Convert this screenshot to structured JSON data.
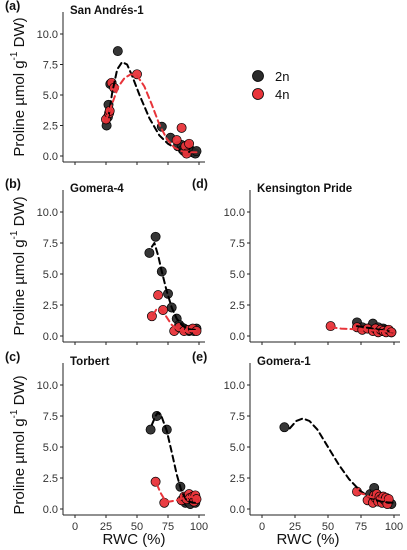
{
  "colors": {
    "2n": "#2b2b2b",
    "4n": "#e8343a"
  },
  "legend": [
    {
      "name": "2n",
      "color": "#2b2b2b"
    },
    {
      "name": "4n",
      "color": "#e8343a"
    }
  ],
  "axes": {
    "ylabel_main": "Proline µmol g",
    "ylabel_exp": "-1",
    "ylabel_tail": " DW)",
    "xlabel": "RWC (%)",
    "xticks": [
      0,
      25,
      50,
      75,
      100
    ],
    "yticks": [
      "0.0",
      "2.5",
      "5.0",
      "7.5",
      "10.0"
    ]
  },
  "chart_data": [
    {
      "type": "scatter",
      "panel": "(a)",
      "title": "San Andrés-1",
      "xlim": [
        0,
        100
      ],
      "ylim": [
        0,
        10
      ],
      "series": [
        {
          "name": "2n",
          "points": [
            [
              25.5,
              2.5
            ],
            [
              26.5,
              3.2
            ],
            [
              27,
              4.2
            ],
            [
              28.5,
              5.9
            ],
            [
              34.5,
              8.6
            ],
            [
              70,
              2.4
            ],
            [
              77,
              1.5
            ],
            [
              83,
              0.8
            ],
            [
              86,
              0.9
            ],
            [
              87,
              0.5
            ],
            [
              88,
              0.4
            ],
            [
              90,
              0.4
            ],
            [
              91,
              0.9
            ],
            [
              93,
              0.5
            ],
            [
              95,
              0.3
            ],
            [
              97,
              0.2
            ],
            [
              98,
              0.4
            ]
          ],
          "fit": [
            [
              27,
              3.2
            ],
            [
              30,
              5.2
            ],
            [
              34,
              7.1
            ],
            [
              38,
              7.7
            ],
            [
              42,
              7.5
            ],
            [
              46,
              6.6
            ],
            [
              52,
              5.0
            ],
            [
              60,
              3.1
            ],
            [
              68,
              1.7
            ],
            [
              75,
              1.0
            ],
            [
              82,
              0.6
            ],
            [
              88,
              0.4
            ],
            [
              95,
              0.3
            ],
            [
              98,
              0.3
            ]
          ]
        },
        {
          "name": "4n",
          "points": [
            [
              25,
              3.0
            ],
            [
              27.5,
              3.5
            ],
            [
              28,
              3.7
            ],
            [
              29.5,
              6.0
            ],
            [
              31.5,
              5.6
            ],
            [
              50,
              6.7
            ],
            [
              82,
              1.3
            ],
            [
              86,
              2.3
            ],
            [
              89,
              0.8
            ],
            [
              90,
              0.2
            ],
            [
              92,
              1.0
            ]
          ],
          "fit": [
            [
              25,
              2.9
            ],
            [
              30,
              4.3
            ],
            [
              35,
              5.7
            ],
            [
              40,
              6.4
            ],
            [
              45,
              6.7
            ],
            [
              50,
              6.6
            ],
            [
              56,
              5.7
            ],
            [
              62,
              4.2
            ],
            [
              68,
              2.6
            ],
            [
              74,
              1.4
            ],
            [
              80,
              0.7
            ],
            [
              86,
              0.4
            ],
            [
              92,
              0.3
            ],
            [
              98,
              0.3
            ]
          ]
        }
      ]
    },
    {
      "type": "scatter",
      "panel": "(b)",
      "title": "Gomera-4",
      "xlim": [
        0,
        100
      ],
      "ylim": [
        0,
        10
      ],
      "series": [
        {
          "name": "2n",
          "points": [
            [
              60,
              6.7
            ],
            [
              65,
              8.0
            ],
            [
              70,
              5.2
            ],
            [
              75,
              3.4
            ],
            [
              78,
              2.3
            ],
            [
              82,
              1.4
            ],
            [
              84,
              0.9
            ],
            [
              86,
              0.7
            ],
            [
              88,
              0.6
            ],
            [
              90,
              0.5
            ],
            [
              92,
              0.4
            ],
            [
              94,
              0.5
            ],
            [
              96,
              0.4
            ],
            [
              98,
              0.6
            ]
          ],
          "fit": [
            [
              62,
              7.2
            ],
            [
              64,
              7.5
            ],
            [
              67,
              6.5
            ],
            [
              70,
              5.2
            ],
            [
              74,
              3.6
            ],
            [
              78,
              2.3
            ],
            [
              82,
              1.4
            ],
            [
              86,
              0.9
            ],
            [
              90,
              0.6
            ],
            [
              95,
              0.5
            ],
            [
              99,
              0.5
            ]
          ]
        },
        {
          "name": "4n",
          "points": [
            [
              62,
              1.6
            ],
            [
              67,
              3.3
            ],
            [
              71,
              2.1
            ],
            [
              80,
              0.4
            ],
            [
              84,
              0.7
            ],
            [
              88,
              0.4
            ],
            [
              92,
              0.5
            ],
            [
              95,
              0.6
            ],
            [
              98,
              0.4
            ]
          ],
          "fit": [
            [
              63,
              1.7
            ],
            [
              66,
              2.2
            ],
            [
              70,
              2.1
            ],
            [
              74,
              1.5
            ],
            [
              78,
              0.9
            ],
            [
              83,
              0.5
            ],
            [
              88,
              0.4
            ],
            [
              93,
              0.4
            ],
            [
              98,
              0.4
            ]
          ]
        }
      ]
    },
    {
      "type": "scatter",
      "panel": "(c)",
      "title": "Torbert",
      "xlim": [
        0,
        100
      ],
      "ylim": [
        0,
        10
      ],
      "series": [
        {
          "name": "2n",
          "points": [
            [
              61,
              6.4
            ],
            [
              66,
              7.5
            ],
            [
              74,
              6.4
            ],
            [
              85,
              1.8
            ],
            [
              87,
              0.8
            ],
            [
              89,
              0.5
            ],
            [
              91,
              0.6
            ],
            [
              93,
              0.4
            ],
            [
              95,
              0.7
            ],
            [
              97,
              0.5
            ]
          ],
          "fit": [
            [
              62,
              6.8
            ],
            [
              65,
              7.5
            ],
            [
              67,
              7.8
            ],
            [
              70,
              7.4
            ],
            [
              74,
              6.3
            ],
            [
              78,
              4.6
            ],
            [
              82,
              2.8
            ],
            [
              86,
              1.4
            ],
            [
              90,
              0.7
            ],
            [
              95,
              0.5
            ],
            [
              98,
              0.5
            ]
          ]
        },
        {
          "name": "4n",
          "points": [
            [
              65,
              2.2
            ],
            [
              72,
              0.5
            ],
            [
              86,
              0.7
            ],
            [
              88,
              1.0
            ],
            [
              90,
              0.8
            ],
            [
              92,
              1.2
            ],
            [
              93,
              0.9
            ],
            [
              95,
              1.0
            ],
            [
              96,
              0.6
            ],
            [
              97,
              1.1
            ],
            [
              98,
              0.8
            ]
          ],
          "fit": [
            [
              66,
              2.0
            ],
            [
              69,
              1.3
            ],
            [
              72,
              0.8
            ],
            [
              76,
              0.6
            ],
            [
              82,
              0.7
            ],
            [
              88,
              0.9
            ],
            [
              93,
              1.0
            ],
            [
              98,
              0.9
            ]
          ]
        }
      ]
    },
    {
      "type": "scatter",
      "panel": "(d)",
      "title": "Kensington Pride",
      "xlim": [
        0,
        100
      ],
      "ylim": [
        0,
        10
      ],
      "series": [
        {
          "name": "2n",
          "points": [
            [
              72,
              1.1
            ],
            [
              76,
              0.7
            ],
            [
              80,
              0.6
            ],
            [
              84,
              1.0
            ],
            [
              86,
              0.5
            ],
            [
              88,
              0.7
            ],
            [
              90,
              0.4
            ],
            [
              92,
              0.6
            ],
            [
              94,
              0.5
            ],
            [
              96,
              0.4
            ],
            [
              98,
              0.3
            ]
          ],
          "fit": [
            [
              72,
              0.8
            ],
            [
              78,
              0.7
            ],
            [
              84,
              0.6
            ],
            [
              90,
              0.5
            ],
            [
              95,
              0.4
            ],
            [
              99,
              0.3
            ]
          ]
        },
        {
          "name": "4n",
          "points": [
            [
              52,
              0.8
            ],
            [
              72,
              0.7
            ],
            [
              76,
              0.5
            ],
            [
              80,
              0.6
            ],
            [
              84,
              0.4
            ],
            [
              86,
              0.6
            ],
            [
              88,
              0.3
            ],
            [
              90,
              0.5
            ],
            [
              92,
              0.4
            ],
            [
              94,
              0.3
            ],
            [
              96,
              0.5
            ],
            [
              98,
              0.3
            ]
          ],
          "fit": [
            [
              52,
              0.7
            ],
            [
              60,
              0.6
            ],
            [
              70,
              0.55
            ],
            [
              80,
              0.5
            ],
            [
              90,
              0.4
            ],
            [
              99,
              0.35
            ]
          ]
        }
      ]
    },
    {
      "type": "scatter",
      "panel": "(e)",
      "title": "Gomera-1",
      "xlim": [
        0,
        100
      ],
      "ylim": [
        0,
        10
      ],
      "series": [
        {
          "name": "2n",
          "points": [
            [
              17,
              6.6
            ],
            [
              82,
              1.2
            ],
            [
              84,
              0.9
            ],
            [
              85,
              1.7
            ],
            [
              86,
              1.0
            ],
            [
              88,
              0.8
            ],
            [
              90,
              0.6
            ],
            [
              92,
              0.9
            ],
            [
              94,
              0.5
            ],
            [
              96,
              0.6
            ],
            [
              98,
              0.4
            ]
          ],
          "fit": [
            [
              21,
              6.5
            ],
            [
              26,
              7.1
            ],
            [
              31,
              7.3
            ],
            [
              36,
              7.1
            ],
            [
              42,
              6.4
            ],
            [
              50,
              5.0
            ],
            [
              58,
              3.6
            ],
            [
              66,
              2.4
            ],
            [
              74,
              1.5
            ],
            [
              82,
              0.9
            ],
            [
              90,
              0.6
            ],
            [
              99,
              0.5
            ]
          ]
        },
        {
          "name": "4n",
          "points": [
            [
              72,
              1.4
            ],
            [
              80,
              0.7
            ],
            [
              84,
              0.5
            ],
            [
              85,
              1.1
            ],
            [
              86,
              0.9
            ],
            [
              87,
              1.2
            ],
            [
              88,
              0.6
            ],
            [
              89,
              1.0
            ],
            [
              90,
              0.8
            ],
            [
              91,
              0.5
            ],
            [
              92,
              1.0
            ],
            [
              93,
              0.7
            ],
            [
              94,
              0.9
            ],
            [
              95,
              0.4
            ],
            [
              96,
              0.8
            ]
          ],
          "fit": [
            [
              73,
              1.3
            ],
            [
              77,
              1.2
            ],
            [
              81,
              1.0
            ],
            [
              86,
              0.9
            ],
            [
              91,
              0.75
            ],
            [
              96,
              0.7
            ]
          ]
        }
      ]
    }
  ]
}
